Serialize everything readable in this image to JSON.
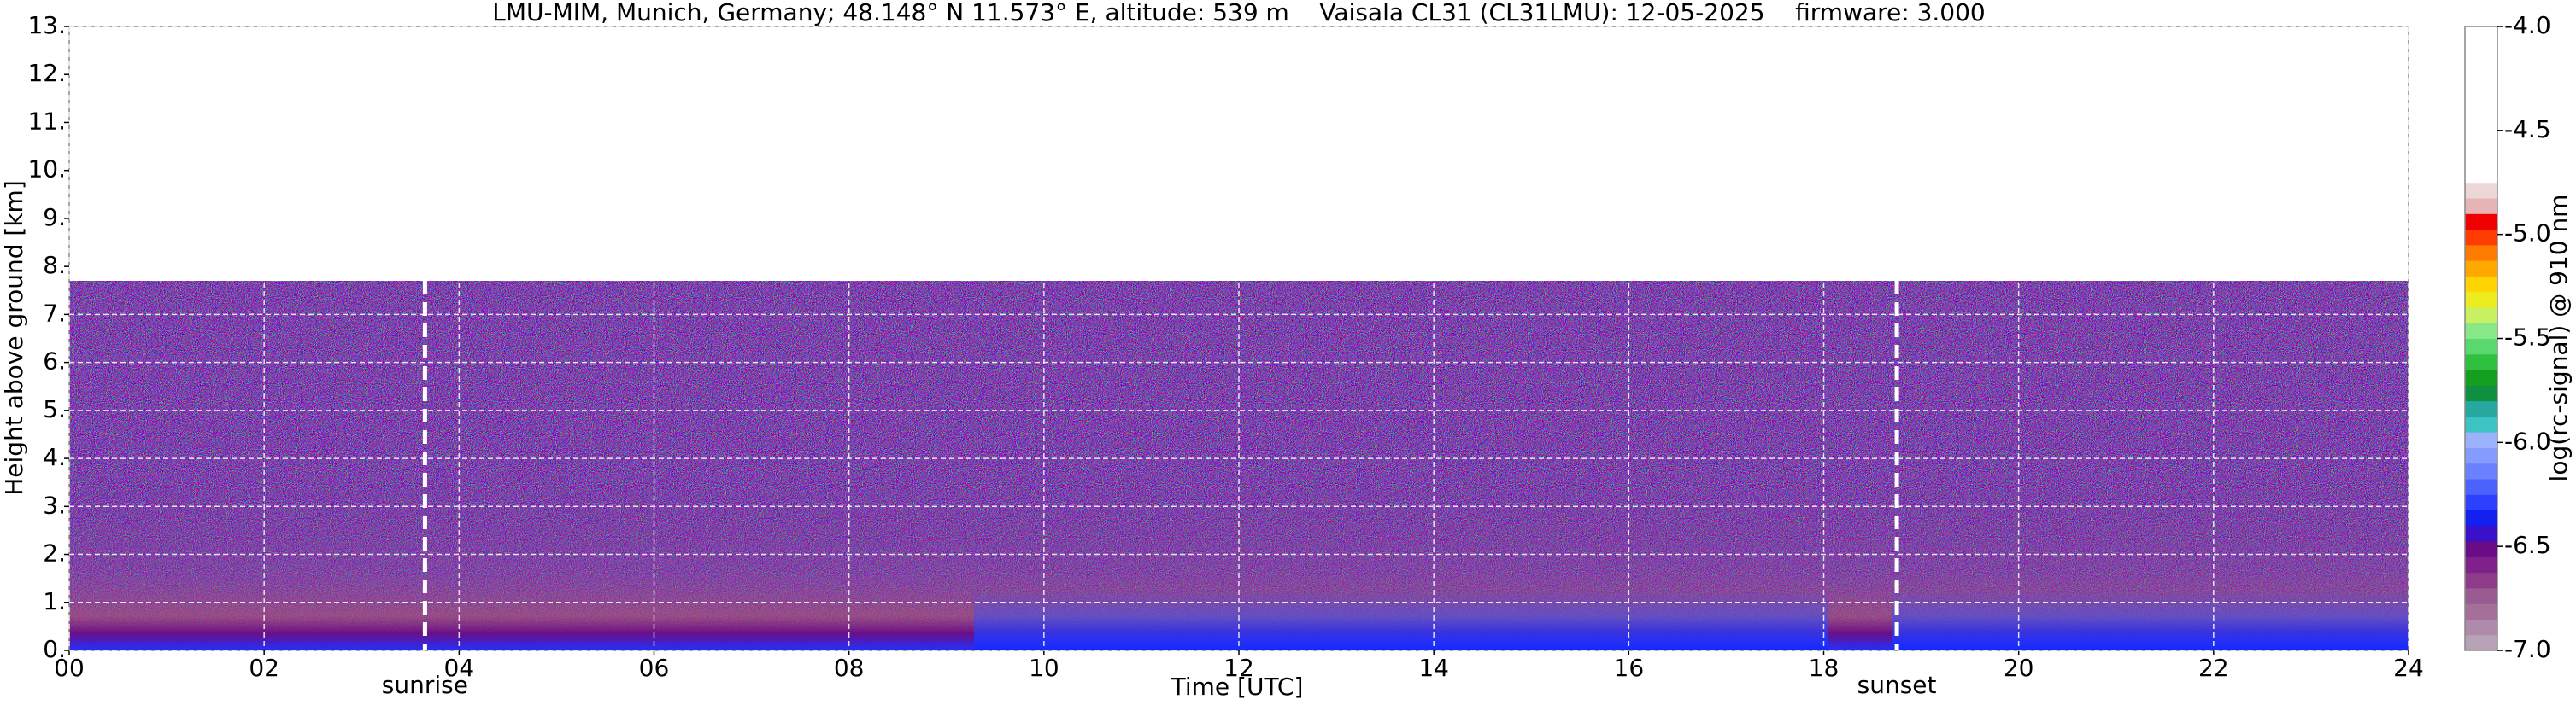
{
  "chart_data": {
    "type": "heatmap",
    "title": "LMU-MIM, Munich, Germany; 48.148° N 11.573° E, altitude: 539 m    Vaisala CL31 (CL31LMU): 12-05-2025    firmware: 3.000",
    "x_label": "Time [UTC]",
    "y_label": "Height above ground [km]",
    "xlim": [
      0,
      24
    ],
    "xticks": [
      {
        "value": 0,
        "label": "00"
      },
      {
        "value": 2,
        "label": "02"
      },
      {
        "value": 4,
        "label": "04"
      },
      {
        "value": 6,
        "label": "06"
      },
      {
        "value": 8,
        "label": "08"
      },
      {
        "value": 10,
        "label": "10"
      },
      {
        "value": 12,
        "label": "12"
      },
      {
        "value": 14,
        "label": "14"
      },
      {
        "value": 16,
        "label": "16"
      },
      {
        "value": 18,
        "label": "18"
      },
      {
        "value": 20,
        "label": "20"
      },
      {
        "value": 22,
        "label": "22"
      },
      {
        "value": 24,
        "label": "24"
      }
    ],
    "ylim": [
      0,
      13
    ],
    "yticks": [
      {
        "value": 0,
        "label": "0."
      },
      {
        "value": 1,
        "label": "1."
      },
      {
        "value": 2,
        "label": "2."
      },
      {
        "value": 3,
        "label": "3."
      },
      {
        "value": 4,
        "label": "4."
      },
      {
        "value": 5,
        "label": "5."
      },
      {
        "value": 6,
        "label": "6."
      },
      {
        "value": 7,
        "label": "7."
      },
      {
        "value": 8,
        "label": "8."
      },
      {
        "value": 9,
        "label": "9."
      },
      {
        "value": 10,
        "label": "10."
      },
      {
        "value": 11,
        "label": "11."
      },
      {
        "value": 12,
        "label": "12."
      },
      {
        "value": 13,
        "label": "13."
      }
    ],
    "grid": true,
    "annotations": [
      {
        "text": "sunrise",
        "x": 3.65
      },
      {
        "text": "sunset",
        "x": 18.75
      }
    ],
    "colorbar": {
      "label": "log(rc-signal) @ 910 nm",
      "lim": [
        -7,
        -4
      ],
      "ticks": [
        {
          "value": -4,
          "label": "-4.0"
        },
        {
          "value": -4.5,
          "label": "-4.5"
        },
        {
          "value": -5,
          "label": "-5.0"
        },
        {
          "value": -5.5,
          "label": "-5.5"
        },
        {
          "value": -6,
          "label": "-6.0"
        },
        {
          "value": -6.5,
          "label": "-6.5"
        },
        {
          "value": -7,
          "label": "-7.0"
        }
      ],
      "colors": [
        "#b8a2b6",
        "#b08aaa",
        "#a47099",
        "#9a5a92",
        "#8e3c8a",
        "#80208a",
        "#6a0c86",
        "#3a10c8",
        "#1420f0",
        "#2e40ff",
        "#4c62ff",
        "#6a80ff",
        "#849cff",
        "#9cb2ff",
        "#3cc4c4",
        "#26a8a0",
        "#0f9040",
        "#14a01e",
        "#30c040",
        "#5ad870",
        "#88e888",
        "#c8f060",
        "#ecec20",
        "#ffd400",
        "#ffa800",
        "#ff7a00",
        "#ff3c00",
        "#f00000",
        "#e6b4b4",
        "#ecd6d6",
        "#ffffff",
        "#ffffff",
        "#ffffff",
        "#ffffff",
        "#ffffff",
        "#ffffff",
        "#ffffff",
        "#ffffff",
        "#ffffff",
        "#ffffff"
      ]
    }
  }
}
